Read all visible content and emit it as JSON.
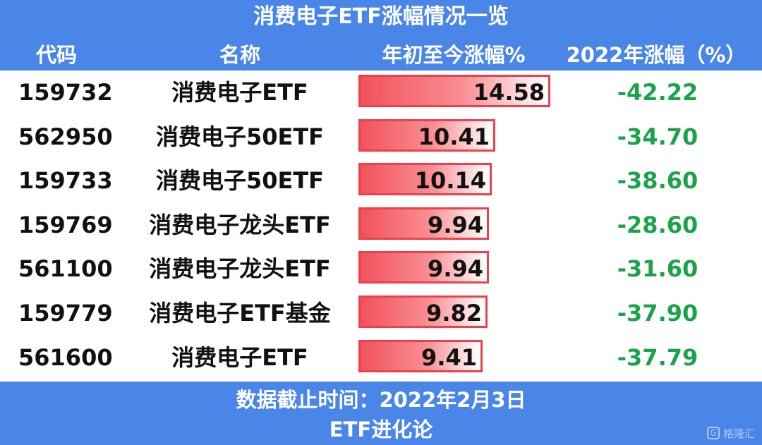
{
  "title": "消费电子ETF涨幅情况一览",
  "headers": {
    "code": "代码",
    "name": "名称",
    "ytd": "年初至今涨幅%",
    "y2022": "2022年涨幅（%）"
  },
  "chart_data": {
    "type": "table",
    "title": "消费电子ETF涨幅情况一览",
    "columns": [
      "代码",
      "名称",
      "年初至今涨幅%",
      "2022年涨幅（%）"
    ],
    "rows": [
      {
        "code": "159732",
        "name": "消费电子ETF",
        "ytd": "14.58",
        "y2022": "-42.22"
      },
      {
        "code": "562950",
        "name": "消费电子50ETF",
        "ytd": "10.41",
        "y2022": "-34.70"
      },
      {
        "code": "159733",
        "name": "消费电子50ETF",
        "ytd": "10.14",
        "y2022": "-38.60"
      },
      {
        "code": "159769",
        "name": "消费电子龙头ETF",
        "ytd": "9.94",
        "y2022": "-28.60"
      },
      {
        "code": "561100",
        "name": "消费电子龙头ETF",
        "ytd": "9.94",
        "y2022": "-31.60"
      },
      {
        "code": "159779",
        "name": "消费电子ETF基金",
        "ytd": "9.82",
        "y2022": "-37.90"
      },
      {
        "code": "561600",
        "name": "消费电子ETF",
        "ytd": "9.41",
        "y2022": "-37.79"
      }
    ],
    "bar_column": "年初至今涨幅%"
  },
  "footer": {
    "date": "数据截止时间：2022年2月3日",
    "source": "ETF进化论"
  },
  "watermark": {
    "icon": "gelonghui-logo-icon",
    "text": "格隆汇"
  },
  "colors": {
    "band": "#4a86e8",
    "bar": "#f2515b",
    "negative": "#1aa34a"
  }
}
